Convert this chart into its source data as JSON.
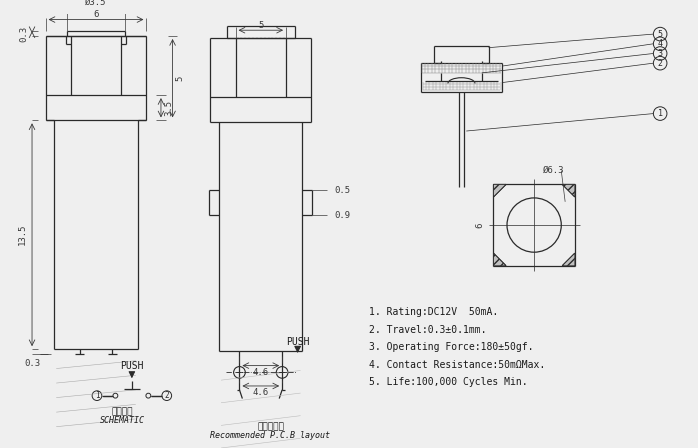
{
  "bg_color": "#efefef",
  "line_color": "#2a2a2a",
  "dim_color": "#3a3a3a",
  "text_color": "#1a1a1a",
  "specs": {
    "rating": "1. Rating:DC12V  50mA.",
    "travel": "2. Travel:0.3±0.1mm.",
    "force": "3. Operating Force:180±50gf.",
    "contact": "4. Contact Resistance:50mΩMax.",
    "life": "5. Life:100,000 Cycles Min."
  }
}
